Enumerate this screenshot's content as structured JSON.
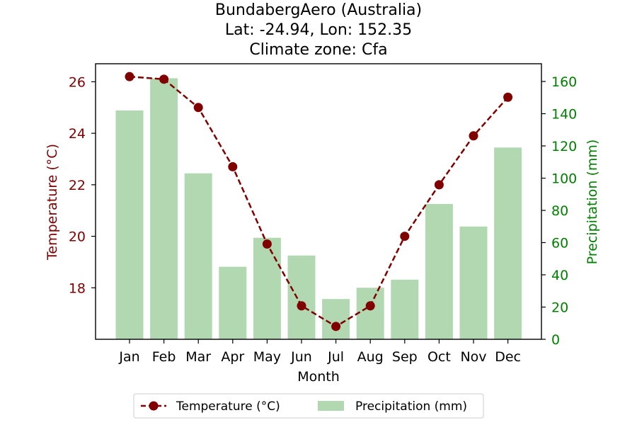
{
  "title_lines": [
    "BundabergAero (Australia)",
    "Lat: -24.94, Lon: 152.35",
    "Climate zone: Cfa"
  ],
  "colors": {
    "temperature": "#800000",
    "precipitation_bar": "#b2d8b2",
    "precipitation_axis": "#008000",
    "axis": "#000000"
  },
  "chart_data": {
    "type": "bar+line",
    "categories": [
      "Jan",
      "Feb",
      "Mar",
      "Apr",
      "May",
      "Jun",
      "Jul",
      "Aug",
      "Sep",
      "Oct",
      "Nov",
      "Dec"
    ],
    "xlabel": "Month",
    "temperature": {
      "name": "Temperature (°C)",
      "axis_label": "Temperature (°C)",
      "values": [
        26.2,
        26.1,
        25.0,
        22.7,
        19.7,
        17.3,
        16.5,
        17.3,
        20.0,
        22.0,
        23.9,
        25.4
      ],
      "ylim": [
        16.0,
        26.7
      ],
      "ticks": [
        18,
        20,
        22,
        24,
        26
      ]
    },
    "precipitation": {
      "name": "Precipitation (mm)",
      "axis_label": "Precipitation (mm)",
      "values": [
        142,
        162,
        103,
        45,
        63,
        52,
        25,
        32,
        37,
        84,
        70,
        119
      ],
      "ylim": [
        0,
        171
      ],
      "ticks": [
        0,
        20,
        40,
        60,
        80,
        100,
        120,
        140,
        160
      ]
    },
    "legend_position": "bottom-center"
  }
}
